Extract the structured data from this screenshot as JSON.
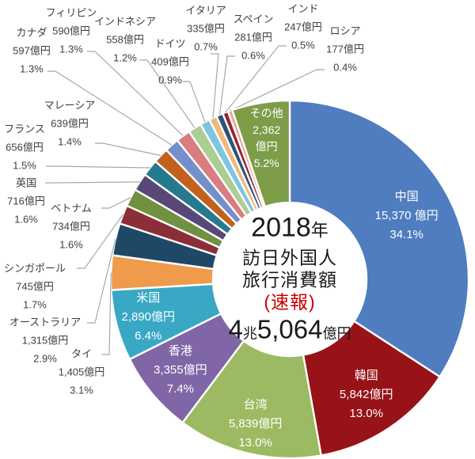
{
  "chart_data": {
    "type": "donut",
    "title": "2018年 訪日外国人 旅行消費額(速報)",
    "center": {
      "year": "2018",
      "year_unit": "年",
      "line2": "訪日外国人",
      "line3": "旅行消費額",
      "flash_label": "(速報)",
      "total_cho": "4",
      "total_cho_unit": "兆",
      "total_oku": "5,064",
      "total_oku_unit": "億円",
      "total_label": "4兆5,064億円",
      "flash_color": "#c80000"
    },
    "unit": "億円",
    "legend_position": "none",
    "leader_line_color": "#a8a8a8",
    "gap_color": "#ffffff",
    "slices": [
      {
        "key": "china",
        "name": "中国",
        "amount": "15,370 億円",
        "percent": "34.1%",
        "value": 15370,
        "pct": 34.1,
        "color": "#4f7dbf"
      },
      {
        "key": "south-korea",
        "name": "韓国",
        "amount": "5,842億円",
        "percent": "13.0%",
        "value": 5842,
        "pct": 13.0,
        "color": "#971318"
      },
      {
        "key": "taiwan",
        "name": "台湾",
        "amount": "5,839億円",
        "percent": "13.0%",
        "value": 5839,
        "pct": 13.0,
        "color": "#9cba62"
      },
      {
        "key": "hong-kong",
        "name": "香港",
        "amount": "3,355億円",
        "percent": "7.4%",
        "value": 3355,
        "pct": 7.4,
        "color": "#8066a6"
      },
      {
        "key": "usa",
        "name": "米国",
        "amount": "2,890億円",
        "percent": "6.4%",
        "value": 2890,
        "pct": 6.4,
        "color": "#38a8c4"
      },
      {
        "key": "thailand",
        "name": "タイ",
        "amount": "1,405億円",
        "percent": "3.1%",
        "value": 1405,
        "pct": 3.1,
        "color": "#f09a4b"
      },
      {
        "key": "australia",
        "name": "オーストラリア",
        "amount": "1,315億円",
        "percent": "2.9%",
        "value": 1315,
        "pct": 2.9,
        "color": "#1f4866"
      },
      {
        "key": "singapore",
        "name": "シンガポール",
        "amount": "745億円",
        "percent": "1.7%",
        "value": 745,
        "pct": 1.7,
        "color": "#8c2e38"
      },
      {
        "key": "vietnam",
        "name": "ベトナム",
        "amount": "734億円",
        "percent": "1.6%",
        "value": 734,
        "pct": 1.6,
        "color": "#6f9140"
      },
      {
        "key": "uk",
        "name": "英国",
        "amount": "716億円",
        "percent": "1.6%",
        "value": 716,
        "pct": 1.6,
        "color": "#584878"
      },
      {
        "key": "france",
        "name": "フランス",
        "amount": "656億円",
        "percent": "1.5%",
        "value": 656,
        "pct": 1.5,
        "color": "#27798d"
      },
      {
        "key": "malaysia",
        "name": "マレーシア",
        "amount": "639億円",
        "percent": "1.4%",
        "value": 639,
        "pct": 1.4,
        "color": "#c2611b"
      },
      {
        "key": "canada",
        "name": "カナダ",
        "amount": "597億円",
        "percent": "1.3%",
        "value": 597,
        "pct": 1.3,
        "color": "#7490ca"
      },
      {
        "key": "philippines",
        "name": "フィリピン",
        "amount": "590億円",
        "percent": "1.3%",
        "value": 590,
        "pct": 1.3,
        "color": "#d97d80"
      },
      {
        "key": "indonesia",
        "name": "インドネシア",
        "amount": "558億円",
        "percent": "1.2%",
        "value": 558,
        "pct": 1.2,
        "color": "#accd94"
      },
      {
        "key": "germany",
        "name": "ドイツ",
        "amount": "409億円",
        "percent": "0.9%",
        "value": 409,
        "pct": 0.9,
        "color": "#7ec5df"
      },
      {
        "key": "italy",
        "name": "イタリア",
        "amount": "335億円",
        "percent": "0.7%",
        "value": 335,
        "pct": 0.7,
        "color": "#efb87e"
      },
      {
        "key": "spain",
        "name": "スペイン",
        "amount": "281億円",
        "percent": "0.6%",
        "value": 281,
        "pct": 0.6,
        "color": "#2c5277"
      },
      {
        "key": "india",
        "name": "インド",
        "amount": "247億円",
        "percent": "0.5%",
        "value": 247,
        "pct": 0.5,
        "color": "#942630"
      },
      {
        "key": "russia",
        "name": "ロシア",
        "amount": "177億円",
        "percent": "0.4%",
        "value": 177,
        "pct": 0.4,
        "color": "#e9a69b"
      },
      {
        "key": "others",
        "name": "その他",
        "amount": "2,362億円",
        "amount_lines": [
          "2,362",
          "億円"
        ],
        "percent": "5.2%",
        "value": 2362,
        "pct": 5.2,
        "color": "#7d9d49"
      }
    ]
  }
}
